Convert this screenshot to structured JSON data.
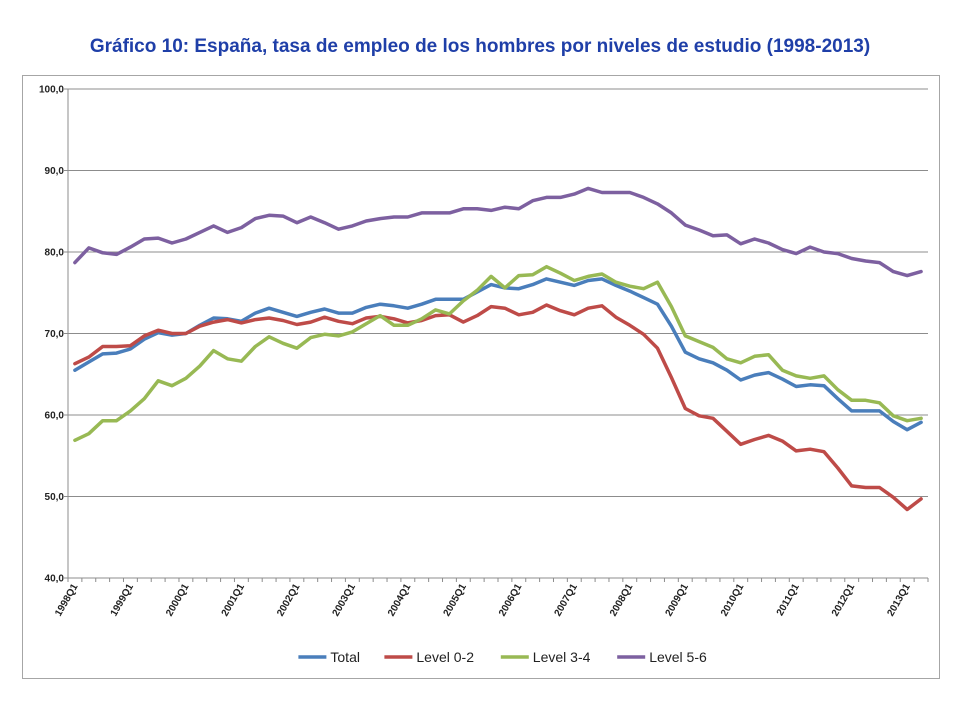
{
  "title": "Gráfico 10: España, tasa de empleo de los hombres por niveles de estudio (1998-2013)",
  "chart_data": {
    "type": "line",
    "title": "Gráfico 10: España, tasa de empleo de los hombres por niveles de estudio (1998-2013)",
    "xlabel": "",
    "ylabel": "",
    "ylim": [
      40,
      100
    ],
    "yticks": [
      "100,0",
      "90,0",
      "80,0",
      "70,0",
      "60,0",
      "50,0",
      "40,0"
    ],
    "grid": "horizontal",
    "legend_position": "bottom",
    "xtick_labels": [
      "1998Q1",
      "1999Q1",
      "2000Q1",
      "2001Q1",
      "2002Q1",
      "2003Q1",
      "2004Q1",
      "2005Q1",
      "2006Q1",
      "2007Q1",
      "2008Q1",
      "2009Q1",
      "2010Q1",
      "2011Q1",
      "2012Q1",
      "2013Q1"
    ],
    "x": [
      "1998Q1",
      "1998Q2",
      "1998Q3",
      "1998Q4",
      "1999Q1",
      "1999Q2",
      "1999Q3",
      "1999Q4",
      "2000Q1",
      "2000Q2",
      "2000Q3",
      "2000Q4",
      "2001Q1",
      "2001Q2",
      "2001Q3",
      "2001Q4",
      "2002Q1",
      "2002Q2",
      "2002Q3",
      "2002Q4",
      "2003Q1",
      "2003Q2",
      "2003Q3",
      "2003Q4",
      "2004Q1",
      "2004Q2",
      "2004Q3",
      "2004Q4",
      "2005Q1",
      "2005Q2",
      "2005Q3",
      "2005Q4",
      "2006Q1",
      "2006Q2",
      "2006Q3",
      "2006Q4",
      "2007Q1",
      "2007Q2",
      "2007Q3",
      "2007Q4",
      "2008Q1",
      "2008Q2",
      "2008Q3",
      "2008Q4",
      "2009Q1",
      "2009Q2",
      "2009Q3",
      "2009Q4",
      "2010Q1",
      "2010Q2",
      "2010Q3",
      "2010Q4",
      "2011Q1",
      "2011Q2",
      "2011Q3",
      "2011Q4",
      "2012Q1",
      "2012Q2",
      "2012Q3",
      "2012Q4",
      "2013Q1",
      "2013Q2"
    ],
    "series": [
      {
        "name": "Total",
        "color": "#4a7ebb",
        "values": [
          65.5,
          66.5,
          67.5,
          67.6,
          68.1,
          69.3,
          70.1,
          69.8,
          70.0,
          71.0,
          71.9,
          71.8,
          71.5,
          72.5,
          73.1,
          72.6,
          72.1,
          72.6,
          73.0,
          72.5,
          72.5,
          73.2,
          73.6,
          73.4,
          73.1,
          73.6,
          74.2,
          74.2,
          74.2,
          75.1,
          76.0,
          75.6,
          75.5,
          76.0,
          76.7,
          76.3,
          75.9,
          76.5,
          76.7,
          75.9,
          75.2,
          74.4,
          73.6,
          70.9,
          67.7,
          66.9,
          66.4,
          65.5,
          64.3,
          64.9,
          65.2,
          64.4,
          63.5,
          63.7,
          63.6,
          62.0,
          60.5,
          60.5,
          60.5,
          59.2,
          58.2,
          59.1
        ]
      },
      {
        "name": "Level 0-2",
        "color": "#be4b48",
        "values": [
          66.3,
          67.1,
          68.4,
          68.4,
          68.5,
          69.7,
          70.4,
          70.0,
          70.0,
          70.9,
          71.4,
          71.7,
          71.3,
          71.7,
          71.9,
          71.6,
          71.1,
          71.4,
          72.0,
          71.5,
          71.2,
          71.9,
          72.1,
          71.8,
          71.3,
          71.6,
          72.2,
          72.3,
          71.4,
          72.2,
          73.3,
          73.1,
          72.3,
          72.6,
          73.5,
          72.8,
          72.3,
          73.1,
          73.4,
          72.0,
          71.0,
          69.9,
          68.2,
          64.6,
          60.8,
          59.9,
          59.6,
          58.0,
          56.4,
          57.0,
          57.5,
          56.8,
          55.6,
          55.8,
          55.5,
          53.5,
          51.3,
          51.1,
          51.1,
          49.9,
          48.4,
          49.7
        ]
      },
      {
        "name": "Level 3-4",
        "color": "#98b954",
        "values": [
          56.9,
          57.7,
          59.3,
          59.3,
          60.5,
          62.0,
          64.2,
          63.6,
          64.5,
          66.0,
          67.9,
          66.9,
          66.6,
          68.4,
          69.6,
          68.8,
          68.2,
          69.5,
          69.9,
          69.7,
          70.2,
          71.2,
          72.2,
          71.0,
          71.0,
          71.8,
          72.9,
          72.4,
          74.0,
          75.3,
          77.0,
          75.6,
          77.1,
          77.2,
          78.2,
          77.4,
          76.5,
          77.0,
          77.3,
          76.3,
          75.8,
          75.5,
          76.3,
          73.3,
          69.7,
          69.0,
          68.3,
          66.9,
          66.4,
          67.2,
          67.4,
          65.5,
          64.8,
          64.5,
          64.8,
          63.1,
          61.8,
          61.8,
          61.5,
          59.9,
          59.3,
          59.6
        ]
      },
      {
        "name": "Level 5-6",
        "color": "#7d60a0",
        "values": [
          78.7,
          80.5,
          79.9,
          79.7,
          80.6,
          81.6,
          81.7,
          81.1,
          81.6,
          82.4,
          83.2,
          82.4,
          83.0,
          84.1,
          84.5,
          84.4,
          83.6,
          84.3,
          83.6,
          82.8,
          83.2,
          83.8,
          84.1,
          84.3,
          84.3,
          84.8,
          84.8,
          84.8,
          85.3,
          85.3,
          85.1,
          85.5,
          85.3,
          86.3,
          86.7,
          86.7,
          87.1,
          87.8,
          87.3,
          87.3,
          87.3,
          86.7,
          85.9,
          84.8,
          83.3,
          82.7,
          82.0,
          82.1,
          81.0,
          81.6,
          81.1,
          80.3,
          79.8,
          80.6,
          80.0,
          79.8,
          79.2,
          78.9,
          78.7,
          77.6,
          77.1,
          77.6
        ]
      }
    ]
  }
}
